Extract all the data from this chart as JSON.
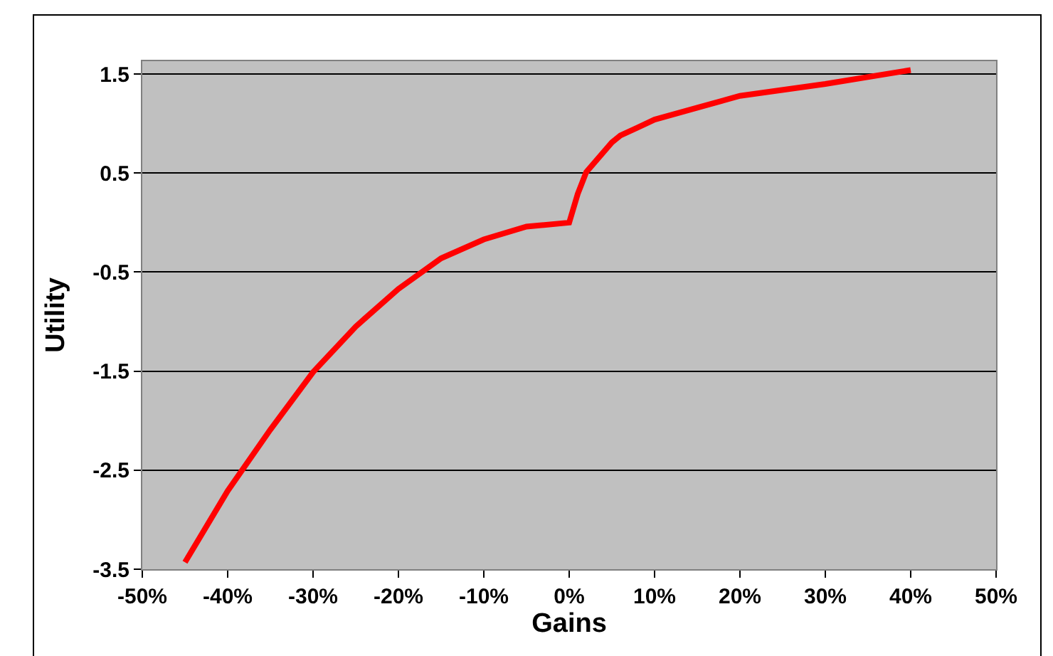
{
  "chart_data": {
    "type": "line",
    "xlabel": "Gains",
    "ylabel": "Utility",
    "x": [
      -45,
      -40,
      -35,
      -30,
      -25,
      -20,
      -15,
      -10,
      -5,
      0,
      1,
      2,
      5,
      6,
      8,
      10,
      15,
      20,
      30,
      40
    ],
    "series": [
      {
        "color": "#ff0000",
        "values": [
          -3.43,
          -2.71,
          -2.09,
          -1.51,
          -1.05,
          -0.67,
          -0.36,
          -0.17,
          -0.04,
          0.0,
          0.29,
          0.51,
          0.81,
          0.88,
          0.96,
          1.04,
          1.16,
          1.28,
          1.4,
          1.54
        ]
      }
    ],
    "xlim": [
      -50,
      50
    ],
    "xticks": [
      {
        "value": -50,
        "label": "-50%"
      },
      {
        "value": -40,
        "label": "-40%"
      },
      {
        "value": -30,
        "label": "-30%"
      },
      {
        "value": -20,
        "label": "-20%"
      },
      {
        "value": -10,
        "label": "-10%"
      },
      {
        "value": 0,
        "label": "0%"
      },
      {
        "value": 10,
        "label": "10%"
      },
      {
        "value": 20,
        "label": "20%"
      },
      {
        "value": 30,
        "label": "30%"
      },
      {
        "value": 40,
        "label": "40%"
      },
      {
        "value": 50,
        "label": "50%"
      }
    ],
    "ylim": [
      -3.5,
      1.63
    ],
    "yticks": [
      -3.5,
      -2.5,
      -1.5,
      -0.5,
      0.5,
      1.5
    ],
    "grid": "y",
    "marker": "none",
    "line_style": "solid"
  }
}
